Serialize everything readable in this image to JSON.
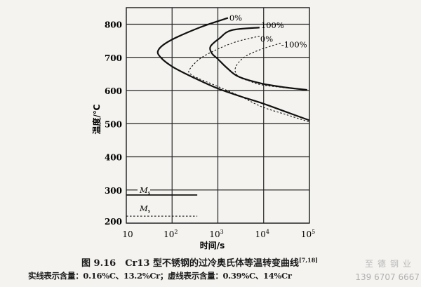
{
  "chart_data": {
    "type": "line",
    "title": "图 9.16　Cr13 型不锈钢的过冷奥氏体等温转变曲线",
    "title_ref": "[7,18]",
    "note": "实线表示含量：0.16%C、13.2%Cr；虚线表示含量：0.39%C、14%Cr",
    "xlabel": "时间/s",
    "ylabel": "温度/℃",
    "xscale": "log",
    "xlim": [
      10,
      100000
    ],
    "ylim": [
      200,
      850
    ],
    "xticks": [
      {
        "v": 1,
        "base": "10",
        "exp": ""
      },
      {
        "v": 2,
        "base": "10",
        "exp": "2"
      },
      {
        "v": 3,
        "base": "10",
        "exp": "3"
      },
      {
        "v": 4,
        "base": "10",
        "exp": "4"
      },
      {
        "v": 5,
        "base": "10",
        "exp": "5"
      }
    ],
    "yticks": [
      200,
      300,
      400,
      500,
      600,
      700,
      800
    ],
    "grid": true,
    "series": [
      {
        "name": "0%",
        "style": "solid",
        "label": "0%",
        "log_t": [
          3.22,
          2.6,
          1.95,
          1.7,
          1.75,
          2.03,
          2.5,
          3.0,
          3.5,
          3.96,
          4.5,
          5.0
        ],
        "T": [
          819,
          790,
          750,
          722,
          700,
          670,
          637,
          606,
          582,
          562,
          535,
          510
        ]
      },
      {
        "name": "100%",
        "style": "solid",
        "label": "100%",
        "log_t": [
          3.91,
          3.3,
          3.04,
          2.84,
          2.87,
          3.0,
          3.2,
          3.45,
          3.96,
          4.5,
          4.95
        ],
        "T": [
          790,
          782,
          758,
          733,
          712,
          695,
          668,
          642,
          621,
          609,
          602
        ]
      },
      {
        "name": "0% (dashed)",
        "style": "dashed",
        "label": "0%",
        "log_t": [
          3.91,
          3.4,
          2.95,
          2.6,
          2.38,
          2.4,
          2.6,
          2.95,
          3.5,
          3.96,
          4.5,
          5.0
        ],
        "T": [
          764,
          747,
          722,
          695,
          663,
          650,
          635,
          615,
          582,
          551,
          527,
          505
        ]
      },
      {
        "name": "100% (dashed)",
        "style": "dashed",
        "label": "-100%",
        "log_t": [
          4.37,
          3.9,
          3.56,
          3.38,
          3.45,
          3.7,
          3.96,
          4.5,
          4.95
        ],
        "T": [
          743,
          722,
          699,
          667,
          642,
          628,
          617,
          608,
          603
        ]
      }
    ],
    "ms_lines": [
      {
        "label": "M",
        "sub": "s",
        "style": "solid",
        "T": 285,
        "log_t_end": 2.55
      },
      {
        "label": "M",
        "sub": "s",
        "style": "dashed",
        "T": 221,
        "log_t_end": 2.55
      }
    ]
  },
  "watermark": {
    "line1": "至德钢业",
    "line2": "139 6707 6667"
  }
}
